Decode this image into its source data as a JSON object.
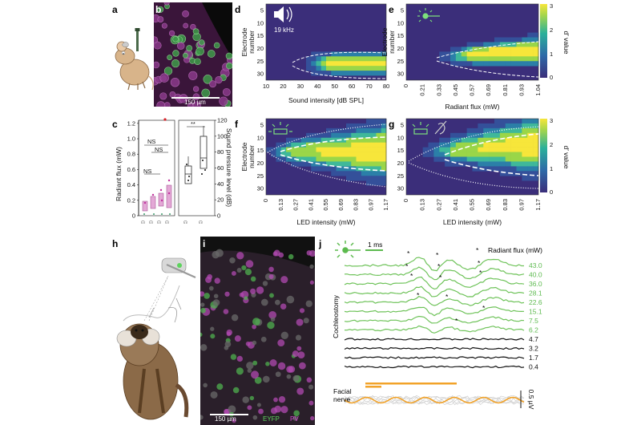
{
  "panels": {
    "a": "a",
    "b": "b",
    "c": "c",
    "d": "d",
    "e": "e",
    "f": "f",
    "g": "g",
    "h": "h",
    "i": "i",
    "j": "j"
  },
  "colors": {
    "eyfp": "#5dd35d",
    "pv": "#d24bd2",
    "trace_green": "#6fc35a",
    "trace_black": "#111111",
    "trace_orange": "#f2a32a",
    "box_pink": "#d88bc6",
    "heat_low": "#3a2a6a",
    "heat_mid": "#2aa39a",
    "heat_high": "#f5e13c"
  },
  "b": {
    "scale": "150 µm"
  },
  "i": {
    "scale": "150 µm",
    "eyfp": "EYFP",
    "pv": "PV"
  },
  "c": {
    "left_ylabel": "Radiant flux (mW)",
    "left_yticks": [
      "0",
      "0.2",
      "0.4",
      "0.6",
      "0.8",
      "1.0",
      "1.2"
    ],
    "ns_labels": [
      "NS",
      "NS",
      "NS"
    ],
    "right_ylabel": "Sound pressure level (dB)",
    "right_yticks": [
      "0",
      "20",
      "40",
      "60",
      "80",
      "100",
      "120"
    ],
    "sig": "**"
  },
  "d": {
    "icon_label": "19 kHz",
    "ylabel": [
      "Electrode",
      "number"
    ],
    "yticks": [
      "5",
      "10",
      "15",
      "20",
      "25",
      "30"
    ],
    "xticks": [
      "10",
      "20",
      "30",
      "40",
      "50",
      "60",
      "70",
      "80"
    ],
    "xlabel": "Sound intensity [dB SPL]"
  },
  "e": {
    "ylabel": [
      "Electrode",
      "number"
    ],
    "yticks": [
      "5",
      "10",
      "15",
      "20",
      "25",
      "30"
    ],
    "xticks": [
      "0",
      "0.21",
      "0.33",
      "0.45",
      "0.57",
      "0.69",
      "0.81",
      "0.93",
      "1.04"
    ],
    "xlabel": "Radiant flux (mW)"
  },
  "f": {
    "ylabel": [
      "Electrode",
      "number"
    ],
    "yticks": [
      "5",
      "10",
      "15",
      "20",
      "25",
      "30"
    ],
    "xticks": [
      "0",
      "0.13",
      "0.27",
      "0.41",
      "0.55",
      "0.69",
      "0.83",
      "0.97",
      "1.17"
    ],
    "xlabel": "LED intensity (mW)"
  },
  "g": {
    "yticks": [
      "5",
      "10",
      "15",
      "20",
      "25",
      "30"
    ],
    "xticks": [
      "0",
      "0.13",
      "0.27",
      "0.41",
      "0.55",
      "0.69",
      "0.83",
      "0.97",
      "1.17"
    ],
    "xlabel": "LED intensity (mW)"
  },
  "colorbar": {
    "ticks": [
      "3",
      "2",
      "1",
      "0"
    ],
    "label": "d′ value"
  },
  "j": {
    "scale": "1 ms",
    "header": "Radiant flux (mW)",
    "green_values": [
      "43.0",
      "40.0",
      "36.0",
      "28.1",
      "22.6",
      "15.1",
      "7.5",
      "6.2"
    ],
    "black_values": [
      "4.7",
      "3.2",
      "1.7",
      "0.4"
    ],
    "side_label": "Cochleostomy",
    "facial_label": [
      "Facial",
      "nerve"
    ],
    "voltage_scale": "0.5 µV"
  }
}
